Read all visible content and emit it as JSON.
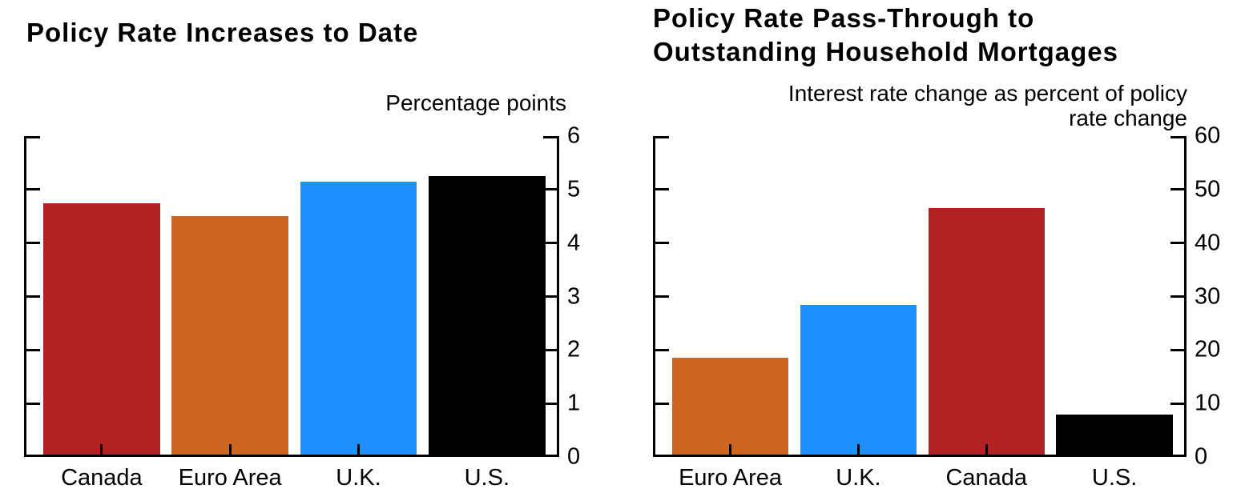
{
  "page": {
    "background": "#ffffff",
    "text_color": "#000000"
  },
  "chart_data": [
    {
      "type": "bar",
      "title_lines": [
        "Policy Rate Increases to Date"
      ],
      "axis_note_lines": [
        "Percentage points"
      ],
      "categories": [
        "Canada",
        "Euro Area",
        "U.K.",
        "U.S."
      ],
      "values": [
        4.75,
        4.5,
        5.15,
        5.25
      ],
      "bar_colors": [
        "#b22222",
        "#cc6620",
        "#1e90ff",
        "#000000"
      ],
      "ylabel": "Percentage points",
      "ylim": [
        0,
        6
      ],
      "yticks": [
        0,
        1,
        2,
        3,
        4,
        5,
        6
      ],
      "ytick_label_side": "right",
      "grid": false,
      "legend": "none"
    },
    {
      "type": "bar",
      "title_lines": [
        "Policy Rate Pass-Through to",
        "Outstanding Household Mortgages"
      ],
      "axis_note_lines": [
        "Interest rate change as percent of policy",
        "rate change"
      ],
      "categories": [
        "Euro Area",
        "U.K.",
        "Canada",
        "U.S."
      ],
      "values": [
        18.5,
        28.5,
        46.5,
        8
      ],
      "bar_colors": [
        "#cc6620",
        "#1e90ff",
        "#b22222",
        "#000000"
      ],
      "ylabel": "Interest rate change as percent of policy rate change",
      "ylim": [
        0,
        60
      ],
      "yticks": [
        0,
        10,
        20,
        30,
        40,
        50,
        60
      ],
      "ytick_label_side": "right",
      "grid": false,
      "legend": "none"
    }
  ]
}
